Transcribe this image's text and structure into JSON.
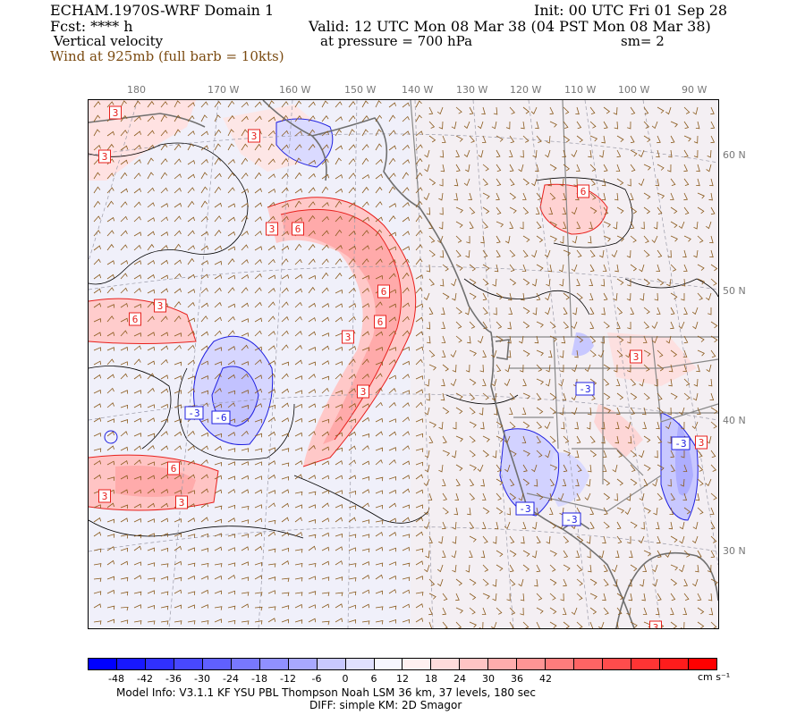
{
  "header": {
    "model_domain": "ECHAM.1970S-WRF Domain 1",
    "init": "Init: 00 UTC Fri 01 Sep 28",
    "fcst": "Fcst: **** h",
    "valid": "Valid: 12 UTC Mon 08 Mar 38 (04 PST Mon 08 Mar 38)",
    "field": "Vertical velocity",
    "pressure": "at pressure =  700 hPa",
    "smoothing": "sm= 2",
    "wind": "Wind at 925mb (full barb = 10kts)"
  },
  "colors": {
    "wind_text": "#7a4a10",
    "barb": "#8a5a1c",
    "positive": "#e8201c",
    "negative": "#2020e0",
    "coast": "#707070"
  },
  "map": {
    "lon_labels": [
      "180",
      "170 W",
      "160 W",
      "150 W",
      "140 W",
      "130 W",
      "120 W",
      "110 W",
      "100 W",
      "90 W"
    ],
    "lat_labels": [
      "60 N",
      "50 N",
      "40 N",
      "30 N"
    ],
    "contour_labels": [
      {
        "text": "3",
        "sign": "pos"
      },
      {
        "text": "3",
        "sign": "pos"
      },
      {
        "text": "3",
        "sign": "pos"
      },
      {
        "text": "6",
        "sign": "pos"
      },
      {
        "text": "3",
        "sign": "pos"
      },
      {
        "text": "6",
        "sign": "pos"
      },
      {
        "text": "3",
        "sign": "pos"
      },
      {
        "text": "6",
        "sign": "pos"
      },
      {
        "text": "6",
        "sign": "pos"
      },
      {
        "text": "6",
        "sign": "pos"
      },
      {
        "text": "3",
        "sign": "pos"
      },
      {
        "text": "3",
        "sign": "pos"
      },
      {
        "text": "3",
        "sign": "pos"
      },
      {
        "text": "6",
        "sign": "pos"
      },
      {
        "text": "3",
        "sign": "pos"
      },
      {
        "text": "3",
        "sign": "pos"
      },
      {
        "text": "3",
        "sign": "pos"
      },
      {
        "text": "3",
        "sign": "pos"
      },
      {
        "text": "-3",
        "sign": "neg"
      },
      {
        "text": "-6",
        "sign": "neg"
      },
      {
        "text": "-3",
        "sign": "neg"
      },
      {
        "text": "-3",
        "sign": "neg"
      },
      {
        "text": "-3",
        "sign": "neg"
      },
      {
        "text": "-3",
        "sign": "neg"
      }
    ]
  },
  "colorbar": {
    "ticks": [
      "-48",
      "-42",
      "-36",
      "-30",
      "-24",
      "-18",
      "-12",
      "-6",
      "0",
      "6",
      "12",
      "18",
      "24",
      "30",
      "36",
      "42"
    ],
    "units": "cm s⁻¹",
    "colors": [
      "#0000ff",
      "#1818ff",
      "#3030ff",
      "#4848ff",
      "#6060ff",
      "#7878ff",
      "#9090ff",
      "#a8a8ff",
      "#c8c8ff",
      "#e0e0ff",
      "#f6f6ff",
      "#fff0f0",
      "#ffdcdc",
      "#ffc4c4",
      "#ffacac",
      "#ff9494",
      "#ff7c7c",
      "#ff6464",
      "#ff4c4c",
      "#ff3434",
      "#ff1c1c",
      "#ff0000"
    ]
  },
  "footer": {
    "line1": "Model Info: V3.1.1    KF       YSU PBL   Thompson     Noah LSM  36 km,     37 levels,   180 sec",
    "line2": "DIFF: simple KM: 2D Smagor"
  }
}
